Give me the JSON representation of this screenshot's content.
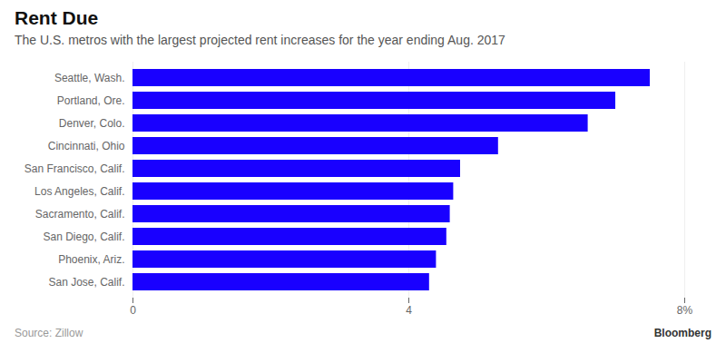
{
  "chart_data": {
    "type": "bar",
    "orientation": "horizontal",
    "title": "Rent Due",
    "subtitle": "The U.S. metros with the largest projected rent increases for the year ending Aug. 2017",
    "source": "Source: Zillow",
    "annotations": [
      "Bloomberg"
    ],
    "categories": [
      "San Jose, Calif.",
      "Phoenix, Ariz.",
      "San Diego, Calif.",
      "Sacramento, Calif.",
      "Los Angeles, Calif.",
      "San Francisco, Calif.",
      "Cincinnati, Ohio",
      "Denver, Colo.",
      "Portland, Ore.",
      "Seattle, Wash."
    ],
    "values": [
      4.3,
      4.4,
      4.55,
      4.6,
      4.65,
      4.75,
      5.3,
      6.6,
      7.0,
      7.5
    ],
    "color": "#1900FF",
    "xlim": [
      0,
      8
    ],
    "xticks": [
      0,
      4,
      {
        "value": 8,
        "label": "8%"
      }
    ],
    "grid": true
  }
}
